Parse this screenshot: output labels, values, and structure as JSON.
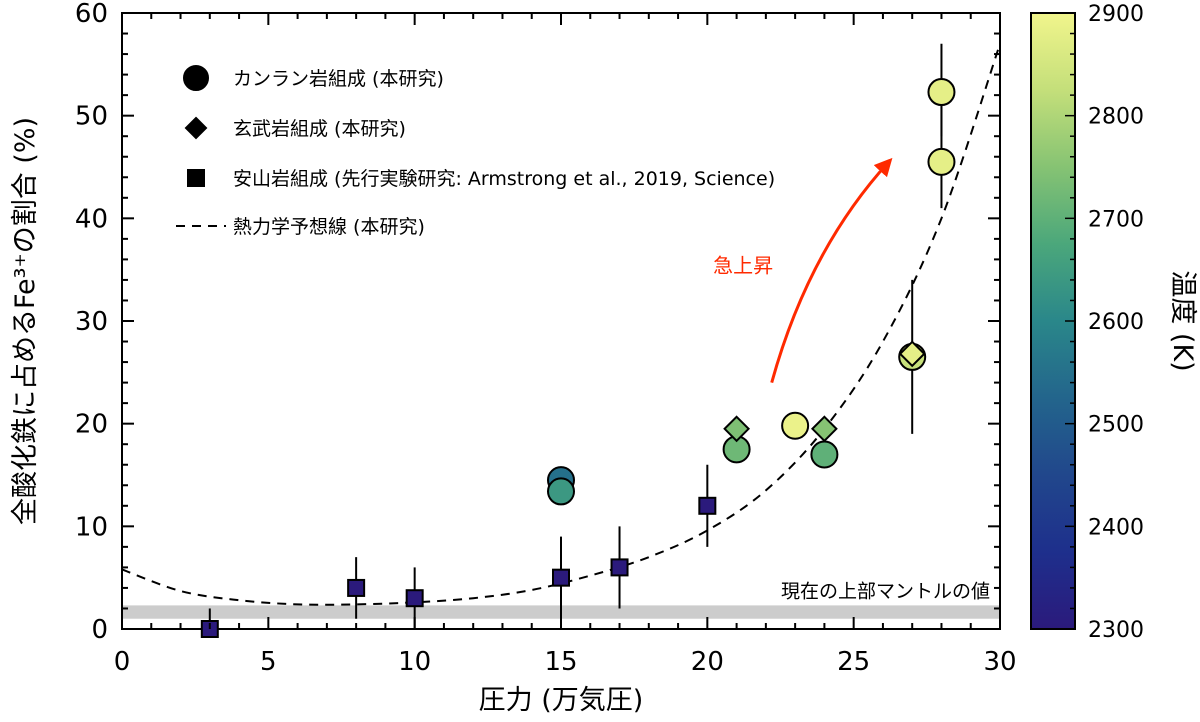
{
  "chart_data": {
    "type": "scatter",
    "xlabel": "圧力 (万気圧)",
    "ylabel": "全酸化鉄に占めるFe³⁺の割合 (%)",
    "xlim": [
      0,
      30
    ],
    "ylim": [
      0,
      60
    ],
    "xticks": [
      "0",
      "5",
      "10",
      "15",
      "20",
      "25",
      "30"
    ],
    "yticks": [
      "0",
      "10",
      "20",
      "30",
      "40",
      "50",
      "60"
    ],
    "grid": false,
    "legend_position": "top-left",
    "legend": [
      {
        "symbol": "circle",
        "label": "カンラン岩組成 (本研究)"
      },
      {
        "symbol": "diamond",
        "label": "玄武岩組成 (本研究)"
      },
      {
        "symbol": "square",
        "label": "安山岩組成 (先行実験研究: Armstrong et al., 2019, Science)"
      },
      {
        "symbol": "dashed-line",
        "label": "熱力学予想線 (本研究)"
      }
    ],
    "series": [
      {
        "name": "カンラン岩組成 (本研究)",
        "marker": "circle",
        "points": [
          {
            "x": 15,
            "y": 14.5,
            "temp": 2550
          },
          {
            "x": 15,
            "y": 13.4,
            "temp": 2640
          },
          {
            "x": 21,
            "y": 17.5,
            "temp": 2720
          },
          {
            "x": 23,
            "y": 19.8,
            "temp": 2890
          },
          {
            "x": 24,
            "y": 17.0,
            "temp": 2700
          },
          {
            "x": 27,
            "y": 26.5,
            "temp": 2830
          },
          {
            "x": 28,
            "y": 52.3,
            "temp": 2880,
            "err": [
              48.0,
              57.0
            ]
          },
          {
            "x": 28,
            "y": 45.5,
            "temp": 2880,
            "err": [
              41.0,
              52.0
            ]
          }
        ]
      },
      {
        "name": "玄武岩組成 (本研究)",
        "marker": "diamond",
        "points": [
          {
            "x": 21,
            "y": 19.5,
            "temp": 2740
          },
          {
            "x": 24,
            "y": 19.5,
            "temp": 2750
          },
          {
            "x": 27,
            "y": 26.8,
            "temp": 2880,
            "err": [
              19.0,
              34.0
            ]
          }
        ]
      },
      {
        "name": "安山岩組成 (先行実験研究: Armstrong et al., 2019, Science)",
        "marker": "square",
        "points": [
          {
            "x": 3,
            "y": 0,
            "temp": 2300,
            "err": [
              0,
              2
            ]
          },
          {
            "x": 8,
            "y": 4,
            "temp": 2300,
            "err": [
              1,
              7
            ]
          },
          {
            "x": 10,
            "y": 3,
            "temp": 2300,
            "err": [
              0,
              6
            ]
          },
          {
            "x": 15,
            "y": 5,
            "temp": 2300,
            "err": [
              0,
              9
            ]
          },
          {
            "x": 17,
            "y": 6,
            "temp": 2300,
            "err": [
              2,
              10
            ]
          },
          {
            "x": 20,
            "y": 12,
            "temp": 2300,
            "err": [
              8,
              16
            ]
          }
        ]
      }
    ],
    "model_curve": {
      "name": "熱力学予想線 (本研究)",
      "style": "dashed",
      "x": [
        0,
        2,
        4,
        6,
        8,
        10,
        12,
        14,
        16,
        18,
        20,
        22,
        24,
        26,
        28,
        30
      ],
      "y": [
        5.8,
        3.7,
        2.8,
        2.4,
        2.4,
        2.6,
        3.0,
        3.8,
        5.2,
        7.0,
        9.6,
        13.5,
        19.5,
        28.0,
        40.0,
        57.0
      ]
    },
    "reference_band": {
      "label": "現在の上部マントルの値",
      "ymin": 1.0,
      "ymax": 2.3,
      "color": "#cccccc"
    },
    "annotation": {
      "text": "急上昇",
      "color": "#ff2a00",
      "arrow_from": {
        "x": 22.2,
        "y": 24.0
      },
      "arrow_to": {
        "x": 26.2,
        "y": 45.5
      }
    },
    "colorbar": {
      "label": "温度 (K)",
      "min": 2300,
      "max": 2900,
      "ticks": [
        "2300",
        "2400",
        "2500",
        "2600",
        "2700",
        "2800",
        "2900"
      ],
      "colormap": [
        "#2b1a7c",
        "#1e2f8c",
        "#21478c",
        "#23658c",
        "#2a878a",
        "#4ba77b",
        "#86c373",
        "#c4df7a",
        "#f1f58c"
      ]
    }
  }
}
